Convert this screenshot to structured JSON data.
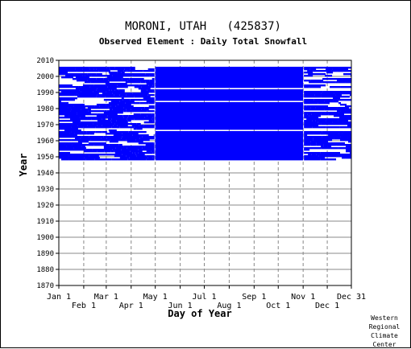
{
  "chart_data": {
    "type": "heatmap",
    "title": "MORONI, UTAH   (425837)",
    "subtitle": "Observed Element : Daily Total Snowfall",
    "xlabel": "Day of Year",
    "ylabel": "Year",
    "xlim": [
      1,
      365
    ],
    "ylim": [
      1870,
      2010
    ],
    "grid": true,
    "x_ticks_row1": [
      {
        "label": "Jan 1",
        "day": 1
      },
      {
        "label": "Mar 1",
        "day": 60
      },
      {
        "label": "May 1",
        "day": 121
      },
      {
        "label": "Jul 1",
        "day": 182
      },
      {
        "label": "Sep 1",
        "day": 244
      },
      {
        "label": "Nov 1",
        "day": 305
      },
      {
        "label": "Dec 31",
        "day": 365
      }
    ],
    "x_ticks_row2": [
      {
        "label": "Feb 1",
        "day": 32
      },
      {
        "label": "Apr 1",
        "day": 91
      },
      {
        "label": "Jun 1",
        "day": 152
      },
      {
        "label": "Aug 1",
        "day": 213
      },
      {
        "label": "Oct 1",
        "day": 274
      },
      {
        "label": "Dec 1",
        "day": 335
      }
    ],
    "y_ticks": [
      1870,
      1880,
      1890,
      1900,
      1910,
      1920,
      1930,
      1940,
      1950,
      1960,
      1970,
      1980,
      1990,
      2000,
      2010
    ],
    "data_color": "#0000ff",
    "coverage_bands": [
      {
        "years": [
          1948,
          2005
        ],
        "day_start": 121,
        "day_end": 305,
        "note": "continuous coverage"
      },
      {
        "years": [
          1948,
          2005
        ],
        "day_start": 1,
        "day_end": 120,
        "note": "partial coverage with gaps"
      },
      {
        "years": [
          1948,
          2005
        ],
        "day_start": 306,
        "day_end": 365,
        "note": "partial coverage with gaps"
      }
    ],
    "gap_years": [
      1966,
      1967,
      1982,
      1984,
      1986,
      1992,
      1995,
      1999
    ]
  },
  "credit": [
    "Western",
    "Regional",
    "Climate",
    "Center"
  ]
}
